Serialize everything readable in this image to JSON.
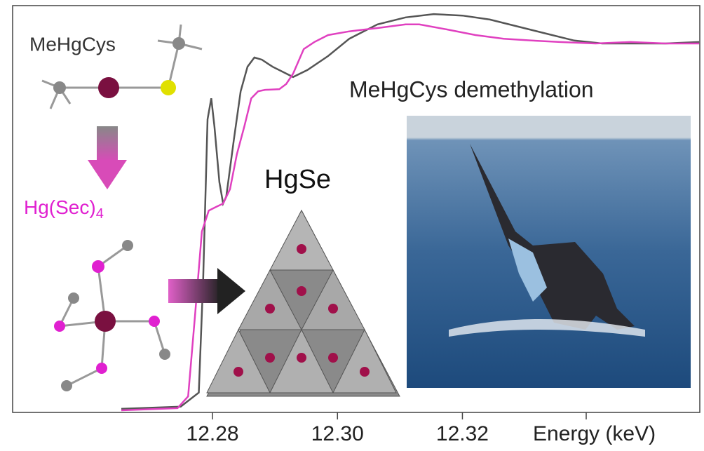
{
  "chart_data": {
    "type": "line",
    "xlabel": "Energy (keV)",
    "xlim": [
      12.248,
      12.358
    ],
    "ylim": [
      0,
      1.1
    ],
    "xticks": [
      12.28,
      {
        "value": 12.3,
        "label": "12.30"
      },
      12.32
    ],
    "annotations": {
      "molecule_top": "MeHgCys",
      "molecule_bottom": "Hg(Sec)",
      "molecule_bottom_subscript": "4",
      "cluster": "HgSe",
      "photo_caption": "MeHgCys demethylation"
    },
    "series": [
      {
        "color": "#555555",
        "x": [
          12.2654,
          12.2749,
          12.2778,
          12.2785,
          12.2792,
          12.2798,
          12.2803,
          12.2811,
          12.2817,
          12.2822,
          12.2834,
          12.2845,
          12.2856,
          12.2867,
          12.2879,
          12.2896,
          12.2929,
          12.2952,
          12.2985,
          12.3019,
          12.3064,
          12.3109,
          12.3154,
          12.32,
          12.3244,
          12.3289,
          12.3334,
          12.3379,
          12.3424,
          12.3469,
          12.3525,
          12.3579
        ],
        "values": [
          0.004,
          0.01,
          0.048,
          0.353,
          0.791,
          0.848,
          0.772,
          0.62,
          0.562,
          0.581,
          0.734,
          0.867,
          0.934,
          0.959,
          0.953,
          0.934,
          0.906,
          0.925,
          0.963,
          1.01,
          1.049,
          1.068,
          1.077,
          1.073,
          1.062,
          1.043,
          1.024,
          1.005,
          0.997,
          0.997,
          0.997,
          1.001
        ]
      },
      {
        "color": "#e040c0",
        "x": [
          12.2654,
          12.2744,
          12.2761,
          12.2772,
          12.2783,
          12.2794,
          12.2806,
          12.2817,
          12.2828,
          12.2839,
          12.2851,
          12.2862,
          12.2873,
          12.2884,
          12.2907,
          12.2918,
          12.2929,
          12.2946,
          12.2963,
          12.2985,
          12.3019,
          12.3064,
          12.3109,
          12.3131,
          12.3176,
          12.3221,
          12.3266,
          12.3311,
          12.3356,
          12.3413,
          12.3469,
          12.3525,
          12.3579
        ],
        "values": [
          0,
          0.006,
          0.038,
          0.257,
          0.486,
          0.543,
          0.553,
          0.562,
          0.601,
          0.696,
          0.772,
          0.848,
          0.867,
          0.871,
          0.873,
          0.887,
          0.915,
          0.982,
          1.001,
          1.02,
          1.03,
          1.039,
          1.049,
          1.049,
          1.035,
          1.02,
          1.01,
          1.005,
          1.001,
          0.997,
          1.001,
          0.997,
          0.997
        ]
      }
    ]
  }
}
